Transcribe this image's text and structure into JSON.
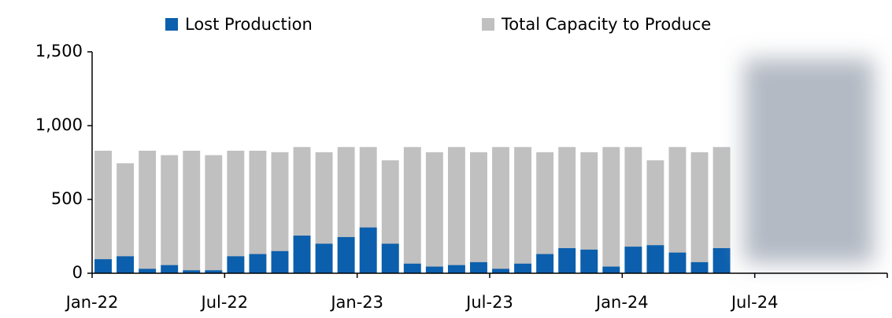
{
  "chart_data": {
    "type": "bar",
    "categories": [
      "Jan-22",
      null,
      null,
      null,
      null,
      null,
      "Jul-22",
      null,
      null,
      null,
      null,
      null,
      "Jan-23",
      null,
      null,
      null,
      null,
      null,
      "Jul-23",
      null,
      null,
      null,
      null,
      null,
      "Jan-24",
      null,
      null,
      null,
      null,
      null,
      "Jul-24",
      null,
      null,
      null,
      null,
      null
    ],
    "series": [
      {
        "name": "Lost Production",
        "color": "#0b5fad",
        "values": [
          95,
          115,
          30,
          55,
          20,
          20,
          115,
          130,
          150,
          255,
          200,
          245,
          310,
          200,
          65,
          45,
          55,
          75,
          30,
          65,
          130,
          170,
          160,
          45,
          180,
          190,
          140,
          75,
          170,
          null,
          null,
          null,
          null,
          null,
          null,
          null
        ]
      },
      {
        "name": "Total Capacity to Produce",
        "color": "#c0c0c0",
        "values": [
          830,
          745,
          830,
          800,
          830,
          800,
          830,
          830,
          820,
          855,
          820,
          855,
          855,
          765,
          855,
          820,
          855,
          820,
          855,
          855,
          820,
          855,
          820,
          855,
          855,
          765,
          855,
          820,
          855,
          null,
          null,
          null,
          null,
          null,
          null,
          null
        ]
      }
    ],
    "ylim": [
      0,
      1500
    ],
    "yticks": [
      0,
      {
        "value": 500,
        "label": "500"
      },
      {
        "value": 1000,
        "label": "1,000"
      },
      {
        "value": 1500,
        "label": "1,500"
      }
    ]
  }
}
